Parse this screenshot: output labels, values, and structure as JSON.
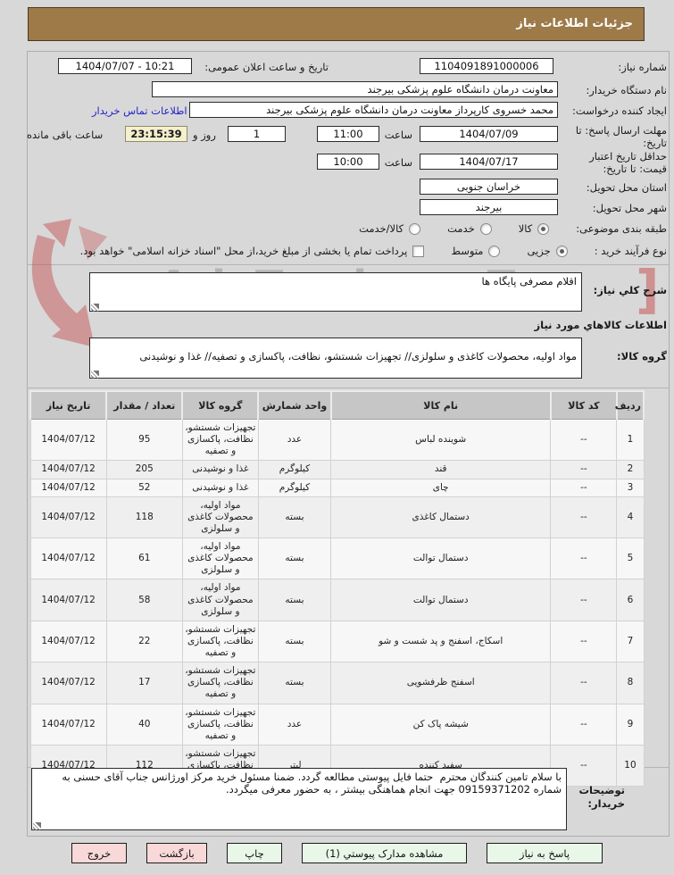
{
  "theme": {
    "title_bg": "#9d7a48",
    "button_green": "#e9f7e9",
    "button_pink": "#f8d8d8",
    "link_color": "#2424cc",
    "highlight_bg": "#f4efcd",
    "watermark_red": "#c44848"
  },
  "title": "جزئیات اطلاعات نیاز",
  "watermark": {
    "text": "AriaTender.neT"
  },
  "form": {
    "need_number": {
      "label": "شماره نیاز:",
      "value": "1104091891000006"
    },
    "announce": {
      "label": "تاریخ و ساعت اعلان عمومی:",
      "value": "1404/07/07 - 10:21"
    },
    "buyer_org": {
      "label": "نام دستگاه خریدار:",
      "value": "معاونت درمان دانشگاه علوم پزشکی بیرجند"
    },
    "creator": {
      "label": "ایجاد کننده درخواست:",
      "value": "محمد خسروی کارپرداز معاونت درمان دانشگاه علوم پزشکی بیرجند"
    },
    "buyer_contact_link": "اطلاعات تماس خریدار",
    "reply_deadline": {
      "label": "مهلت ارسال پاسخ: تا تاریخ:",
      "date": "1404/07/09",
      "hour_label": "ساعت",
      "time": "11:00"
    },
    "remaining": {
      "days": "1",
      "days_label": "روز و",
      "time": "23:15:39",
      "suffix": "ساعت باقی مانده"
    },
    "price_validity": {
      "label": "حداقل تاریخ اعتبار قیمت: تا تاریخ:",
      "date": "1404/07/17",
      "hour_label": "ساعت",
      "time": "10:00"
    },
    "province": {
      "label": "استان محل تحویل:",
      "value": "خراسان جنوبی"
    },
    "city": {
      "label": "شهر محل تحویل:",
      "value": "بیرجند"
    },
    "classification": {
      "label": "طبقه بندی موضوعی:",
      "options": [
        {
          "label": "کالا",
          "selected": true
        },
        {
          "label": "خدمت",
          "selected": false
        },
        {
          "label": "کالا/خدمت",
          "selected": false
        }
      ]
    },
    "process_type": {
      "label": "نوع فرآیند خرید :",
      "options": [
        {
          "label": "جزیی",
          "selected": true
        },
        {
          "label": "متوسط",
          "selected": false
        }
      ],
      "treasury_label": "پرداخت تمام یا بخشی از مبلغ خرید،از محل \"اسناد خزانه اسلامی\" خواهد بود.",
      "treasury_checked": false
    }
  },
  "need_desc": {
    "label": "شرح کلي نیاز:",
    "value": "اقلام مصرفی پایگاه ها"
  },
  "goods_section": {
    "header": "اطلاعات کالاهاي مورد نیاز",
    "group_label": "گروه کالا:",
    "group_value": "مواد اولیه، محصولات کاغذی و سلولزی// تجهیزات شستشو، نظافت، پاکسازی و تصفیه// غذا و نوشیدنی"
  },
  "table": {
    "headers": [
      "ردیف",
      "کد کالا",
      "نام کالا",
      "واحد شمارش",
      "گروه کالا",
      "تعداد / مقدار",
      "تاریخ نیاز"
    ],
    "rows": [
      [
        "1",
        "--",
        "شوینده لباس",
        "عدد",
        "تجهیزات شستشو، نظافت، پاکسازی و تصفیه",
        "95",
        "1404/07/12"
      ],
      [
        "2",
        "--",
        "قند",
        "کیلوگرم",
        "غذا و نوشیدنی",
        "205",
        "1404/07/12"
      ],
      [
        "3",
        "--",
        "چای",
        "کیلوگرم",
        "غذا و نوشیدنی",
        "52",
        "1404/07/12"
      ],
      [
        "4",
        "--",
        "دستمال کاغذی",
        "بسته",
        "مواد اولیه، محصولات کاغذی و سلولزی",
        "118",
        "1404/07/12"
      ],
      [
        "5",
        "--",
        "دستمال توالت",
        "بسته",
        "مواد اولیه، محصولات کاغذی و سلولزی",
        "61",
        "1404/07/12"
      ],
      [
        "6",
        "--",
        "دستمال توالت",
        "بسته",
        "مواد اولیه، محصولات کاغذی و سلولزی",
        "58",
        "1404/07/12"
      ],
      [
        "7",
        "--",
        "اسکاج، اسفنج و پد شست و شو",
        "بسته",
        "تجهیزات شستشو، نظافت، پاکسازی و تصفیه",
        "22",
        "1404/07/12"
      ],
      [
        "8",
        "--",
        "اسفنج ظرفشویی",
        "بسته",
        "تجهیزات شستشو، نظافت، پاکسازی و تصفیه",
        "17",
        "1404/07/12"
      ],
      [
        "9",
        "--",
        "شیشه پاک کن",
        "عدد",
        "تجهیزات شستشو، نظافت، پاکسازی و تصفیه",
        "40",
        "1404/07/12"
      ],
      [
        "10",
        "--",
        "سفید کننده",
        "لیتر",
        "تجهیزات شستشو، نظافت، پاکسازی و تصفیه",
        "112",
        "1404/07/12"
      ]
    ]
  },
  "buyer_notes": {
    "label": "توضیحات خریدار:",
    "value": "با سلام تامین کنندگان محترم  حتما فایل پیوستی مطالعه گردد. ضمنا مسئول خرید مرکز اورژانس جناب آقای حسنی به شماره 09159371202 جهت انجام هماهنگی بیشتر ، به حضور معرفی میگردد."
  },
  "buttons": [
    {
      "name": "reply-to-need",
      "label": "پاسخ به نیاز"
    },
    {
      "name": "view-attachments",
      "label": "مشاهده مدارک پیوستي (1)"
    },
    {
      "name": "print",
      "label": "چاپ"
    },
    {
      "name": "back",
      "label": "بازگشت"
    },
    {
      "name": "exit",
      "label": "خروج"
    }
  ]
}
